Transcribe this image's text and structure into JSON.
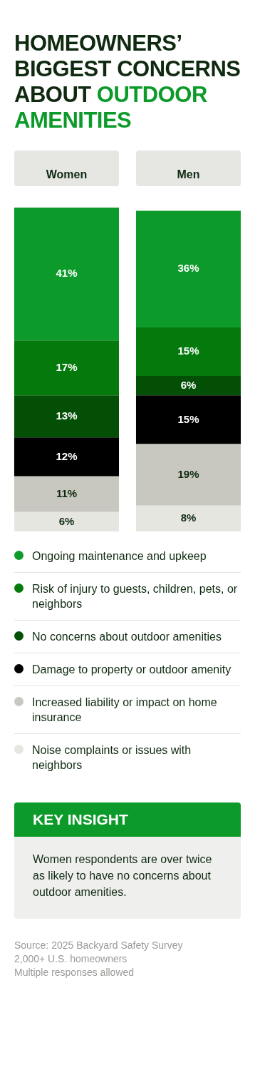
{
  "chart_data": {
    "type": "bar",
    "title": "HOMEOWNERS’ BIGGEST CONCERNS ABOUT OUTDOOR AMENITIES",
    "categories": [
      "Women",
      "Men"
    ],
    "stacked": true,
    "legend": "bottom",
    "series": [
      {
        "name": "Noise complaints or issues with neighbors",
        "color": "#e6e6e1",
        "values": [
          6,
          8
        ],
        "value_labels": [
          "6%",
          "8%"
        ]
      },
      {
        "name": "Increased liability or impact on home insurance",
        "color": "#c8c8c0",
        "values": [
          11,
          19
        ],
        "value_labels": [
          "11%",
          "19%"
        ]
      },
      {
        "name": "Damage to property or outdoor amenity",
        "color": "#000000",
        "values": [
          12,
          15
        ],
        "value_labels": [
          "12%",
          "15%"
        ]
      },
      {
        "name": "No concerns about outdoor amenities",
        "color": "#034f05",
        "values": [
          13,
          6
        ],
        "value_labels": [
          "13%",
          "6%"
        ]
      },
      {
        "name": "Risk of injury to guests, children, pets, or neighbors",
        "color": "#047a0c",
        "values": [
          17,
          15
        ],
        "value_labels": [
          "17%",
          "15%"
        ]
      },
      {
        "name": "Ongoing maintenance and upkeep",
        "color": "#0c9b2a",
        "values": [
          41,
          36
        ],
        "value_labels": [
          "41%",
          "36%"
        ]
      }
    ],
    "annotations": [
      "KEY INSIGHT",
      "Women respondents are over twice as likely to have no concerns about outdoor amenities.",
      "Source: 2025 Backyard Safety Survey",
      "2,000+ U.S. homeowners",
      "Multiple responses allowed"
    ]
  }
}
